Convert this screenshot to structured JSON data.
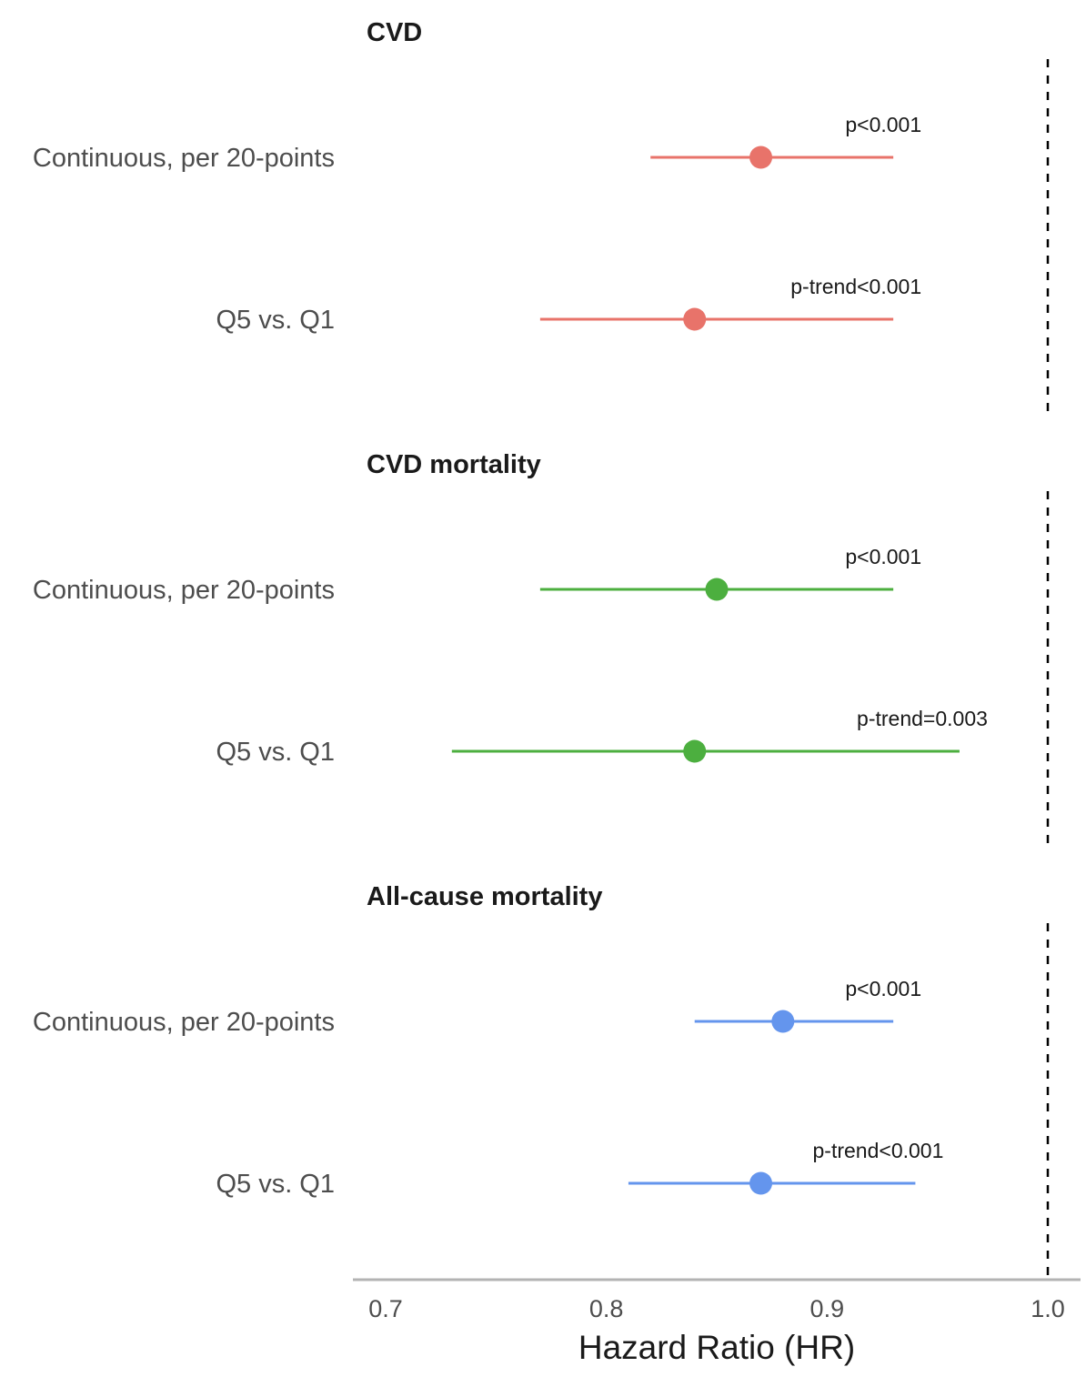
{
  "chart_data": {
    "type": "forest",
    "xlabel": "Hazard Ratio (HR)",
    "xlim": [
      0.69,
      1.015
    ],
    "ticks": [
      0.7,
      0.8,
      0.9,
      1.0
    ],
    "tick_labels": [
      "0.7",
      "0.8",
      "0.9",
      "1.0"
    ],
    "reference_line": 1.0,
    "grid": false,
    "panels": [
      {
        "title": "CVD",
        "color": "#E8736A",
        "rows": [
          {
            "label": "Continuous, per 20-points",
            "hr": 0.87,
            "lower": 0.82,
            "upper": 0.93,
            "p_label": "p<0.001"
          },
          {
            "label": "Q5 vs. Q1",
            "hr": 0.84,
            "lower": 0.77,
            "upper": 0.93,
            "p_label": "p-trend<0.001"
          }
        ]
      },
      {
        "title": "CVD mortality",
        "color": "#4CAF3F",
        "rows": [
          {
            "label": "Continuous, per 20-points",
            "hr": 0.85,
            "lower": 0.77,
            "upper": 0.93,
            "p_label": "p<0.001"
          },
          {
            "label": "Q5 vs. Q1",
            "hr": 0.84,
            "lower": 0.73,
            "upper": 0.96,
            "p_label": "p-trend=0.003"
          }
        ]
      },
      {
        "title": "All-cause mortality",
        "color": "#6495ED",
        "rows": [
          {
            "label": "Continuous, per 20-points",
            "hr": 0.88,
            "lower": 0.84,
            "upper": 0.93,
            "p_label": "p<0.001"
          },
          {
            "label": "Q5 vs. Q1",
            "hr": 0.87,
            "lower": 0.81,
            "upper": 0.94,
            "p_label": "p-trend<0.001"
          }
        ]
      }
    ]
  }
}
